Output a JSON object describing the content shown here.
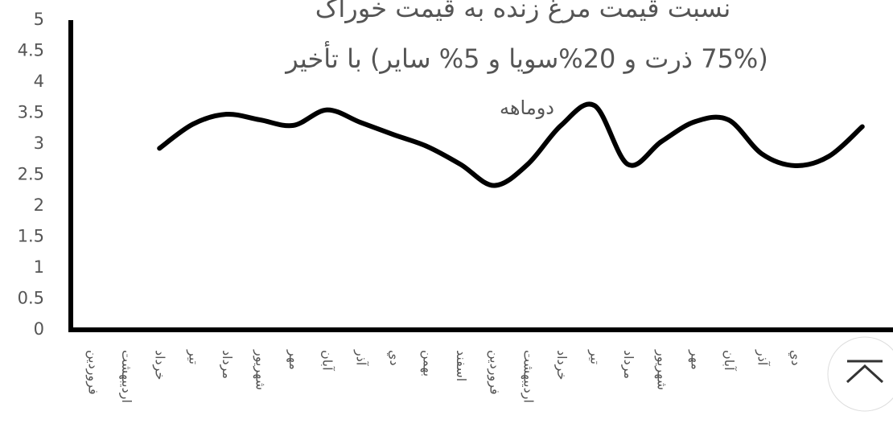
{
  "chart_data": {
    "type": "line",
    "title": [
      "نسبت قیمت مرغ زنده  به قیمت خوراک",
      "(75% ذرت و 20%سویا و 5% سایر) با تأخیر",
      "دوماهه"
    ],
    "categories": [
      "فروردین",
      "اردیبهشت",
      "خرداد",
      "تیر",
      "مرداد",
      "شهریور",
      "مهر",
      "آبان",
      "آذر",
      "دي",
      "بهمن",
      "اسفند",
      "فروردین",
      "اردیبهشت",
      "خرداد",
      "تیر",
      "مرداد",
      "شهریور",
      "مهر",
      "آبان",
      "آذر",
      "دي",
      null,
      null
    ],
    "values": [
      null,
      null,
      2.93,
      3.32,
      3.48,
      3.39,
      3.3,
      3.55,
      3.35,
      3.15,
      2.96,
      2.67,
      2.33,
      2.67,
      3.3,
      3.62,
      2.67,
      3.04,
      3.36,
      3.39,
      2.84,
      2.65,
      2.8,
      3.28
    ],
    "color": "#000000",
    "ylim": [
      0,
      5
    ],
    "yticks": [
      0,
      0.5,
      1,
      1.5,
      2,
      2.5,
      3,
      3.5,
      4,
      4.5,
      5
    ],
    "grid": false
  }
}
